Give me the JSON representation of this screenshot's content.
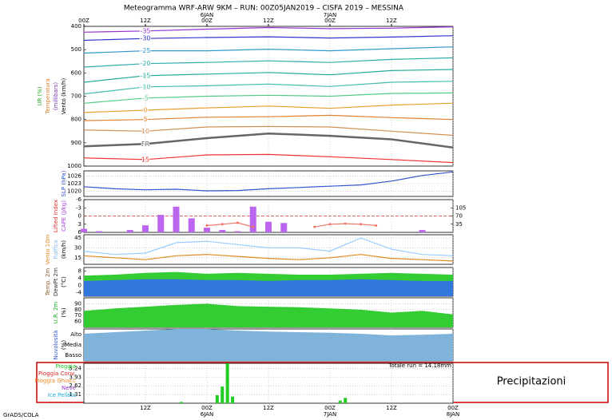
{
  "title": "Meteogramma WRF-ARW 9KM – RUN: 00Z05JAN2019 – CISFA 2019 – MESSINA",
  "footer": "GrADS/COLA",
  "annotation": "Precipitazioni",
  "time_axis": {
    "xlim": [
      0,
      72
    ],
    "top_ticks": [
      {
        "value": 0,
        "label": "00Z"
      },
      {
        "value": 12,
        "label": "12Z"
      },
      {
        "value": 24,
        "label": "00Z"
      },
      {
        "value": 36,
        "label": "12Z"
      },
      {
        "value": 48,
        "label": "00Z"
      },
      {
        "value": 60,
        "label": "12Z"
      }
    ],
    "top_dates": [
      {
        "value": 24,
        "label": "6JAN"
      },
      {
        "value": 48,
        "label": "7JAN"
      }
    ],
    "bottom_ticks": [
      {
        "value": 12,
        "label": "12Z"
      },
      {
        "value": 24,
        "label": "00Z"
      },
      {
        "value": 36,
        "label": "12Z"
      },
      {
        "value": 48,
        "label": "00Z"
      },
      {
        "value": 60,
        "label": "12Z"
      },
      {
        "value": 72,
        "label": "00Z"
      }
    ],
    "bottom_dates": [
      {
        "value": 24,
        "label": "6JAN"
      },
      {
        "value": 48,
        "label": "7JAN"
      },
      {
        "value": 72,
        "label": "8JAN"
      }
    ]
  },
  "chart_data": [
    {
      "type": "contour",
      "ylabels": [
        {
          "text": "UR (%)",
          "color": "#22aa22"
        },
        {
          "text": "Temperatura",
          "color": "#e08030"
        },
        {
          "text": "(millibars)",
          "color": "#7733aa"
        },
        {
          "text": "Vento (km/h)",
          "color": "#000000"
        }
      ],
      "ylim": [
        1000,
        400
      ],
      "yticks": [
        400,
        500,
        600,
        700,
        800,
        900,
        1000
      ],
      "x": [
        0,
        12,
        24,
        36,
        48,
        60,
        72
      ],
      "series": [
        {
          "name": "-35",
          "color": "#9933cc",
          "values": [
            425,
            420,
            412,
            405,
            410,
            408,
            402
          ]
        },
        {
          "name": "-30",
          "color": "#3333cc",
          "values": [
            460,
            452,
            448,
            445,
            450,
            446,
            440
          ]
        },
        {
          "name": "-25",
          "color": "#3399cc",
          "values": [
            515,
            505,
            505,
            498,
            505,
            496,
            488
          ]
        },
        {
          "name": "-20",
          "color": "#33aaaa",
          "values": [
            575,
            560,
            555,
            548,
            555,
            542,
            535
          ]
        },
        {
          "name": "-15",
          "color": "#22aa99",
          "values": [
            640,
            612,
            605,
            598,
            608,
            590,
            585
          ]
        },
        {
          "name": "-10",
          "color": "#44bbaa",
          "values": [
            690,
            660,
            655,
            648,
            658,
            640,
            636
          ]
        },
        {
          "name": "-5",
          "color": "#55cc88",
          "values": [
            730,
            708,
            700,
            696,
            700,
            688,
            686
          ]
        },
        {
          "name": "0",
          "color": "#e8a030",
          "values": [
            770,
            760,
            750,
            742,
            752,
            738,
            730
          ]
        },
        {
          "name": "5",
          "color": "#e08030",
          "values": [
            805,
            800,
            790,
            788,
            782,
            792,
            800
          ]
        },
        {
          "name": "10",
          "color": "#d09050",
          "values": [
            845,
            850,
            832,
            830,
            832,
            850,
            868
          ]
        },
        {
          "name": "FR",
          "color": "#666666",
          "values": [
            915,
            905,
            880,
            860,
            870,
            885,
            920
          ]
        },
        {
          "name": "15",
          "color": "#ee3333",
          "values": [
            965,
            972,
            952,
            950,
            960,
            972,
            985
          ]
        }
      ]
    },
    {
      "type": "line",
      "ylabels": [
        {
          "text": "SLP (hPa)",
          "color": "#3355cc"
        }
      ],
      "ylim": [
        1018,
        1028
      ],
      "yticks": [
        1020,
        1023,
        1026
      ],
      "grid": true,
      "x": [
        0,
        6,
        12,
        18,
        24,
        30,
        36,
        42,
        48,
        54,
        60,
        66,
        72
      ],
      "series": [
        {
          "color": "#3355cc",
          "values": [
            1021.8,
            1021,
            1020.6,
            1020.8,
            1020.2,
            1020.3,
            1021,
            1021.5,
            1022,
            1022.5,
            1024,
            1026.2,
            1027.6
          ]
        }
      ]
    },
    {
      "type": "combo",
      "ylabels": [
        {
          "text": "Lifted Index",
          "color": "#dd3333"
        },
        {
          "text": "CAPE (J/kg)",
          "color": "#aa44dd"
        }
      ],
      "ylim": [
        6,
        -6
      ],
      "yticks": [
        -6,
        -3,
        0,
        3,
        6
      ],
      "y2lim": [
        0,
        140
      ],
      "y2ticks": [
        35,
        70,
        105
      ],
      "zero_line": "#dd3333",
      "x": [
        0,
        3,
        6,
        9,
        12,
        15,
        18,
        21,
        24,
        27,
        30,
        33,
        36,
        39,
        42,
        45,
        48,
        51,
        54,
        57,
        60,
        63,
        66,
        69,
        72
      ],
      "series": [
        {
          "kind": "bar",
          "axis": "y2",
          "color": "#bb66ee",
          "values": [
            15,
            5,
            0,
            10,
            30,
            75,
            110,
            60,
            20,
            10,
            5,
            110,
            45,
            40,
            0,
            0,
            0,
            0,
            0,
            0,
            0,
            0,
            10,
            0,
            0
          ]
        },
        {
          "kind": "line",
          "color": "#ee7766",
          "values": [
            null,
            null,
            null,
            null,
            null,
            null,
            null,
            null,
            3.5,
            3,
            2.5,
            4,
            null,
            null,
            null,
            4,
            3,
            2.8,
            3,
            3.5,
            null,
            null,
            null,
            null,
            null
          ]
        }
      ]
    },
    {
      "type": "line",
      "ylabels": [
        {
          "text": "Vento 10m",
          "color": "#e08a20"
        },
        {
          "text": "Raffica",
          "color": "#88bbee"
        },
        {
          "text": "(km/h)",
          "color": "#000000"
        }
      ],
      "ylim": [
        5,
        50
      ],
      "yticks": [
        15,
        30,
        45
      ],
      "grid": true,
      "x": [
        0,
        6,
        12,
        18,
        24,
        30,
        36,
        42,
        48,
        54,
        60,
        66,
        72
      ],
      "series": [
        {
          "color": "#99ccff",
          "values": [
            25,
            20,
            22,
            38,
            40,
            35,
            30,
            30,
            25,
            45,
            28,
            20,
            18
          ]
        },
        {
          "color": "#e08a20",
          "values": [
            18,
            15,
            12,
            18,
            20,
            17,
            14,
            12,
            15,
            20,
            14,
            12,
            10
          ]
        }
      ]
    },
    {
      "type": "area",
      "ylabels": [
        {
          "text": "Temp. 2m",
          "color": "#8b5a2b"
        },
        {
          "text": "DewPt 2m",
          "color": "#333333"
        },
        {
          "text": "(°C)",
          "color": "#000000"
        }
      ],
      "ylim": [
        -6,
        10
      ],
      "yticks": [
        -4,
        0,
        4,
        8
      ],
      "zero_line": "#000000",
      "x": [
        0,
        6,
        12,
        18,
        24,
        30,
        36,
        42,
        48,
        54,
        60,
        66,
        72
      ],
      "series": [
        {
          "color": "#33cc33",
          "values": [
            5.5,
            6,
            7,
            7.5,
            6.5,
            7,
            6.5,
            6,
            6,
            6.5,
            7,
            6.5,
            6
          ]
        },
        {
          "color": "#3377dd",
          "values": [
            2.5,
            3,
            3.5,
            3.5,
            3,
            3,
            2.5,
            3,
            3,
            3.5,
            3,
            2.5,
            2.5
          ]
        }
      ]
    },
    {
      "type": "area",
      "ylabels": [
        {
          "text": "U.R. 2m",
          "color": "#22aa22"
        },
        {
          "text": "(%)",
          "color": "#000000"
        }
      ],
      "ylim": [
        50,
        100
      ],
      "yticks": [
        60,
        70,
        80,
        90
      ],
      "grid": true,
      "x": [
        0,
        6,
        12,
        18,
        24,
        30,
        36,
        42,
        48,
        54,
        60,
        66,
        72
      ],
      "series": [
        {
          "color": "#33cc33",
          "values": [
            78,
            82,
            85,
            88,
            90,
            86,
            85,
            84,
            82,
            80,
            75,
            78,
            72
          ]
        }
      ]
    },
    {
      "type": "area",
      "ylabels": [
        {
          "text": "Nuvolosità",
          "color": "#3355cc"
        },
        {
          "text": "(%)",
          "color": "#000000"
        }
      ],
      "ylim": [
        0,
        100
      ],
      "yticks": [
        {
          "value": 17,
          "label": "Basso"
        },
        {
          "value": 50,
          "label": "Media"
        },
        {
          "value": 83,
          "label": "Alto"
        }
      ],
      "x": [
        0,
        6,
        12,
        18,
        24,
        30,
        36,
        42,
        48,
        54,
        60,
        66,
        72
      ],
      "series": [
        {
          "color": "#7fb3d9",
          "values": [
            85,
            90,
            95,
            100,
            100,
            95,
            92,
            90,
            88,
            85,
            80,
            82,
            85
          ]
        }
      ]
    },
    {
      "type": "bar",
      "ylabels": [],
      "ylim": [
        0,
        6
      ],
      "yticks": [
        1.31,
        2.62,
        3.93,
        5.24
      ],
      "grid": true,
      "x": [
        19,
        26,
        27,
        28,
        29,
        50,
        51
      ],
      "series": [
        {
          "name": "Pioggia",
          "color": "#22cc22",
          "values": [
            0.2,
            1.2,
            2.5,
            6,
            1,
            0.4,
            0.8
          ]
        }
      ],
      "other_types": [
        {
          "name": "Pioggia Conv.",
          "color": "#dd2222"
        },
        {
          "name": "Pioggia Ghiacc",
          "color": "#ee8822"
        },
        {
          "name": "Neve",
          "color": "#9933cc"
        },
        {
          "name": "Ice Pellets",
          "color": "#22aadd"
        }
      ],
      "total": "Totale run = 14.18mm"
    }
  ]
}
